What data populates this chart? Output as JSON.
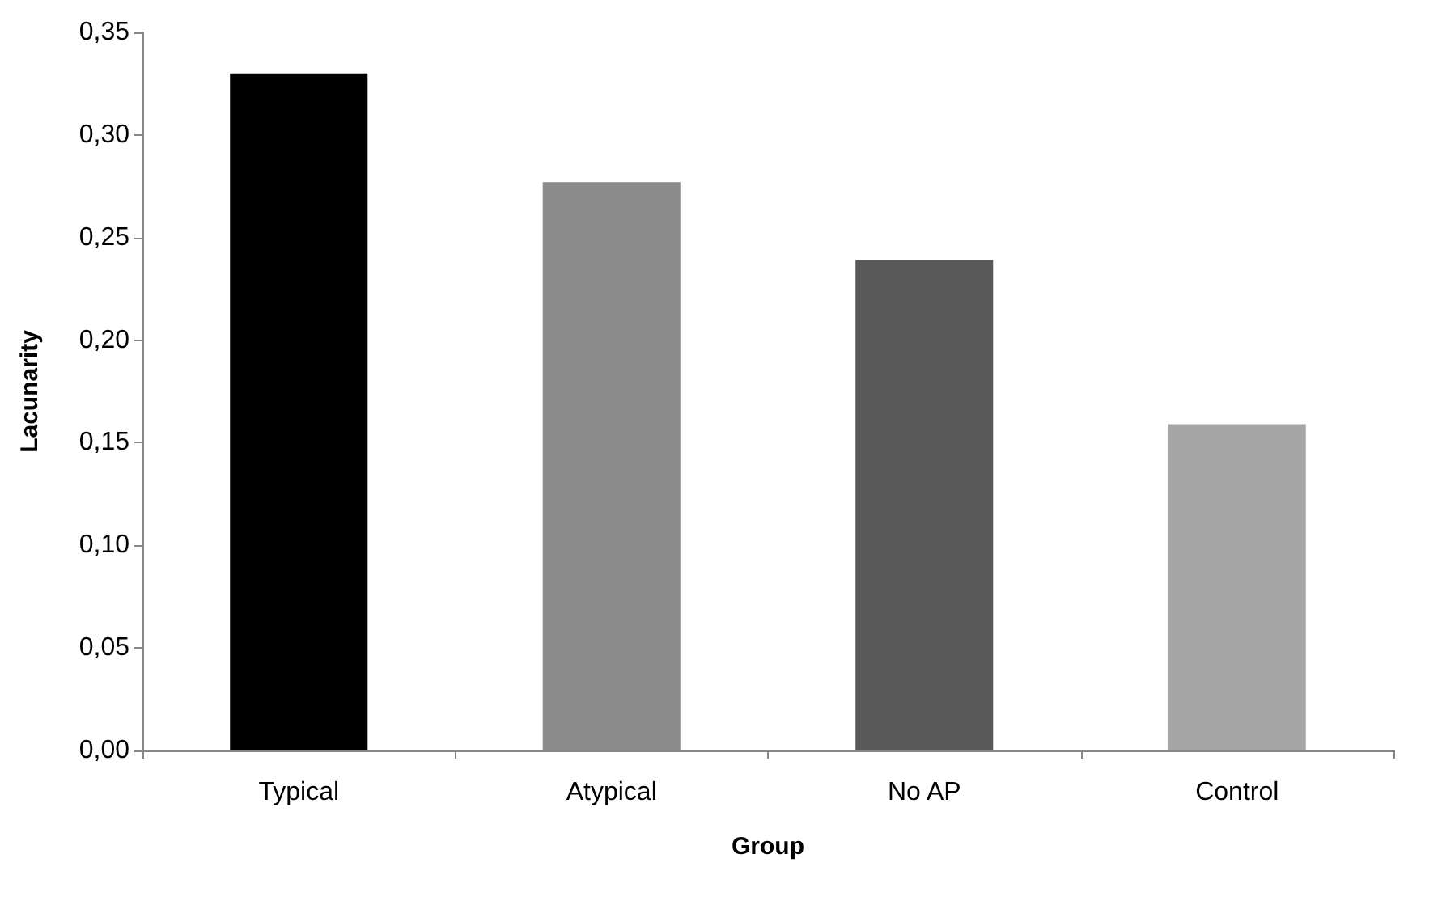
{
  "chart_data": {
    "type": "bar",
    "xlabel": "Group",
    "ylabel": "Lacunarity",
    "categories": [
      "Typical",
      "Atypical",
      "No AP",
      "Control"
    ],
    "values": [
      0.33,
      0.277,
      0.239,
      0.159
    ],
    "colors": [
      "#000000",
      "#8c8c8c",
      "#595959",
      "#a6a6a6"
    ],
    "ylim": [
      0,
      0.35
    ],
    "yticks": [
      {
        "value": 0,
        "label": "0,00"
      },
      {
        "value": 0.05,
        "label": "0,05"
      },
      {
        "value": 0.1,
        "label": "0,10"
      },
      {
        "value": 0.15,
        "label": "0,15"
      },
      {
        "value": 0.2,
        "label": "0,20"
      },
      {
        "value": 0.25,
        "label": "0,25"
      },
      {
        "value": 0.3,
        "label": "0,30"
      },
      {
        "value": 0.35,
        "label": "0,35"
      }
    ],
    "grid": false
  }
}
